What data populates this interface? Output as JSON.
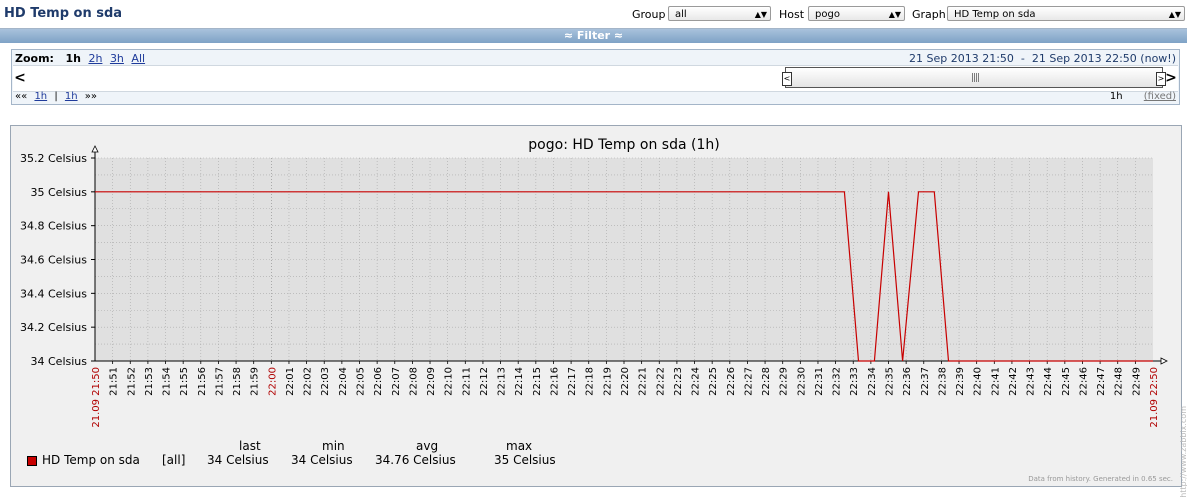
{
  "header": {
    "title": "HD Temp on sda",
    "group_label": "Group",
    "group_value": "all",
    "host_label": "Host",
    "host_value": "pogo",
    "graph_label": "Graph",
    "graph_value": "HD Temp on sda"
  },
  "filter": {
    "label": "≈ Filter ≈"
  },
  "zoom": {
    "label": "Zoom:",
    "current": "1h",
    "options": [
      "2h",
      "3h",
      "All"
    ],
    "period_from": "21 Sep 2013 21:50",
    "period_sep": "-",
    "period_to": "21 Sep 2013 22:50 (now!)",
    "nav_back": "««",
    "nav_back_step": "1h",
    "nav_sep": "|",
    "nav_fwd_step": "1h",
    "nav_fwd": "»»",
    "period_length": "1h",
    "fixed_label": "(fixed)"
  },
  "chart_data": {
    "type": "line",
    "title": "pogo: HD Temp on sda (1h)",
    "ylim": [
      34,
      35.2
    ],
    "y_ticks": [
      "34 Celsius",
      "34.2 Celsius",
      "34.4 Celsius",
      "34.6 Celsius",
      "34.8 Celsius",
      "35 Celsius",
      "35.2 Celsius"
    ],
    "y_tick_values": [
      34,
      34.2,
      34.4,
      34.6,
      34.8,
      35,
      35.2
    ],
    "x_start_label": "21.09 21:50",
    "x_end_label": "21.09 22:50",
    "x_mid_highlight": "22:00",
    "x_ticks": [
      "21:51",
      "21:52",
      "21:53",
      "21:54",
      "21:55",
      "21:56",
      "21:57",
      "21:58",
      "21:59",
      "22:00",
      "22:01",
      "22:02",
      "22:03",
      "22:04",
      "22:05",
      "22:06",
      "22:07",
      "22:08",
      "22:09",
      "22:10",
      "22:11",
      "22:12",
      "22:13",
      "22:14",
      "22:15",
      "22:16",
      "22:17",
      "22:18",
      "22:19",
      "22:20",
      "22:21",
      "22:22",
      "22:23",
      "22:24",
      "22:25",
      "22:26",
      "22:27",
      "22:28",
      "22:29",
      "22:30",
      "22:31",
      "22:32",
      "22:33",
      "22:34",
      "22:35",
      "22:36",
      "22:37",
      "22:38",
      "22:39",
      "22:40",
      "22:41",
      "22:42",
      "22:43",
      "22:44",
      "22:45",
      "22:46",
      "22:47",
      "22:48",
      "22:49"
    ],
    "series": [
      {
        "name": "HD Temp on sda",
        "color": "#c80000",
        "points": [
          {
            "t": 0,
            "v": 35
          },
          {
            "t": 42.5,
            "v": 35
          },
          {
            "t": 43.3,
            "v": 34
          },
          {
            "t": 44.2,
            "v": 34
          },
          {
            "t": 45.0,
            "v": 35
          },
          {
            "t": 45.8,
            "v": 34
          },
          {
            "t": 46.7,
            "v": 35
          },
          {
            "t": 47.6,
            "v": 35
          },
          {
            "t": 48.4,
            "v": 34
          },
          {
            "t": 60,
            "v": 34
          }
        ]
      }
    ],
    "grid": true
  },
  "legend": {
    "headers": {
      "last": "last",
      "min": "min",
      "avg": "avg",
      "max": "max"
    },
    "item_name": "HD Temp on sda",
    "item_func": "[all]",
    "last": "34 Celsius",
    "min": "34 Celsius",
    "avg": "34.76 Celsius",
    "max": "35 Celsius"
  },
  "footnote": "Data from history. Generated in 0.65 sec.",
  "watermark": "http://www.zabbix.com"
}
